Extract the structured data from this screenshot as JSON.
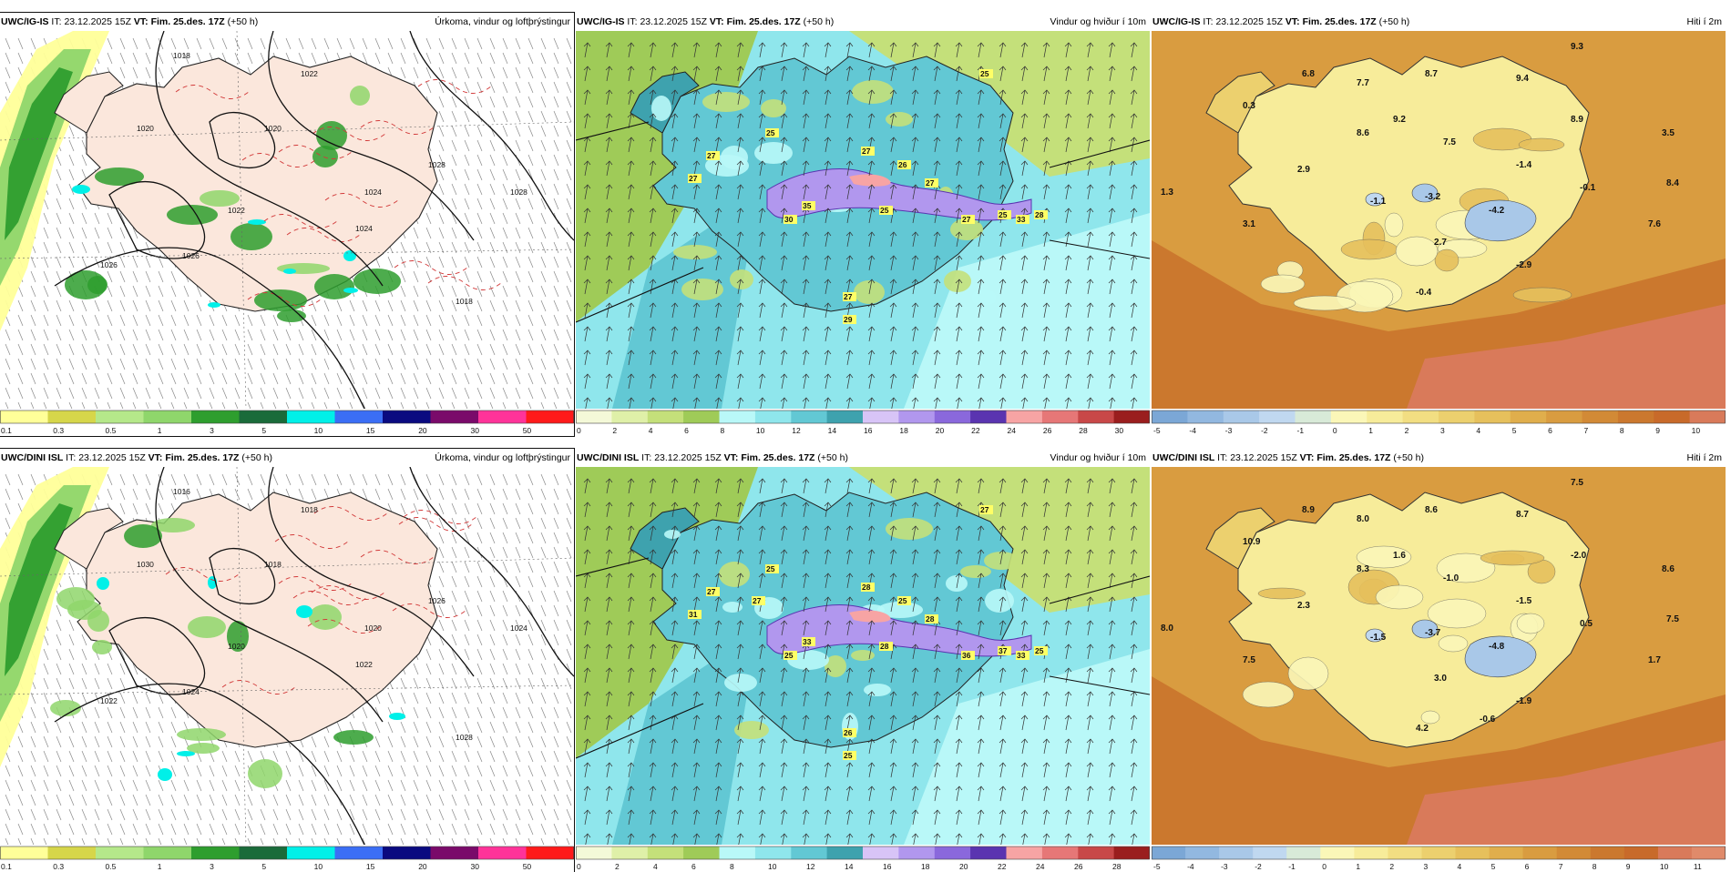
{
  "panels": [
    {
      "key": "ig_precip",
      "model": "UWC/IG-IS",
      "it_label": "IT:",
      "it_value": "23.12.2025 15Z",
      "vt_label": "VT: Fim. 25.des. 17Z",
      "lead": "(+50 h)",
      "title": "Úrkoma, vindur og loftþrýstingur",
      "legend": {
        "labels": [
          "0.1",
          "0.3",
          "0.5",
          "1",
          "3",
          "5",
          "10",
          "15",
          "20",
          "30",
          "50"
        ],
        "colors": [
          "#ffff99",
          "#d6d64a",
          "#b5e88a",
          "#8fd66b",
          "#2e9e2e",
          "#1a6b3a",
          "#00f0e8",
          "#3b6ef5",
          "#0a0a80",
          "#7a0a6a",
          "#ff3399",
          "#ff1a1a"
        ]
      },
      "isobars": [
        "1018",
        "1020",
        "1022",
        "1024",
        "1026",
        "1028",
        "1018",
        "1020",
        "1022",
        "1024",
        "1026",
        "1028"
      ],
      "values": []
    },
    {
      "key": "ig_wind",
      "model": "UWC/IG-IS",
      "it_label": "IT:",
      "it_value": "23.12.2025 15Z",
      "vt_label": "VT: Fim. 25.des. 17Z",
      "lead": "(+50 h)",
      "title": "Vindur og hviður í 10m",
      "legend": {
        "labels": [
          "0",
          "2",
          "4",
          "6",
          "8",
          "10",
          "12",
          "14",
          "16",
          "18",
          "20",
          "22",
          "24",
          "26",
          "28",
          "30"
        ],
        "colors": [
          "#f4f9d8",
          "#dff0a8",
          "#c4e07a",
          "#9fcb58",
          "#b9f8f8",
          "#8fe6ec",
          "#62c8d4",
          "#3ea2ae",
          "#d8c4f7",
          "#b197ee",
          "#8a68dc",
          "#5a34b0",
          "#f7a4a4",
          "#e67777",
          "#c84848",
          "#9a1e1e"
        ]
      },
      "values": [
        "25",
        "25",
        "27",
        "27",
        "26",
        "27",
        "27",
        "30",
        "35",
        "25",
        "27",
        "25",
        "33",
        "28",
        "27",
        "29"
      ]
    },
    {
      "key": "ig_temp",
      "model": "UWC/IG-IS",
      "it_label": "IT:",
      "it_value": "23.12.2025 15Z",
      "vt_label": "VT: Fim. 25.des. 17Z",
      "lead": "(+50 h)",
      "title": "Hiti í 2m",
      "legend": {
        "labels": [
          "-5",
          "-4",
          "-3",
          "-2",
          "-1",
          "0",
          "1",
          "2",
          "3",
          "4",
          "5",
          "6",
          "7",
          "8",
          "9",
          "10"
        ],
        "colors": [
          "#7ba7d6",
          "#92b8e0",
          "#a9c8e8",
          "#c0d8f0",
          "#d8ead8",
          "#fbf7b8",
          "#f7ec9a",
          "#f2de82",
          "#ecd06e",
          "#e6c05c",
          "#e0ae4c",
          "#d99c40",
          "#d28a36",
          "#cb782e",
          "#c86a2a",
          "#d97a5a"
        ]
      },
      "values": [
        "9.3",
        "6.8",
        "7.7",
        "8.7",
        "9.4",
        "0.3",
        "9.2",
        "8.6",
        "7.5",
        "8.9",
        "3.5",
        "2.9",
        "-1.4",
        "-0.1",
        "8.4",
        "1.3",
        "-1.1",
        "-3.2",
        "-4.2",
        "3.1",
        "2.7",
        "7.6",
        "-2.9",
        "-0.4"
      ]
    },
    {
      "key": "dini_precip",
      "model": "UWC/DINI ISL",
      "it_label": "IT:",
      "it_value": "23.12.2025 15Z",
      "vt_label": "VT: Fim. 25.des. 17Z",
      "lead": "(+50 h)",
      "title": "Úrkoma, vindur og loftþrýstingur",
      "legend": {
        "labels": [
          "0.1",
          "0.3",
          "0.5",
          "1",
          "3",
          "5",
          "10",
          "15",
          "20",
          "30",
          "50"
        ],
        "colors": [
          "#ffff99",
          "#d6d64a",
          "#b5e88a",
          "#8fd66b",
          "#2e9e2e",
          "#1a6b3a",
          "#00f0e8",
          "#3b6ef5",
          "#0a0a80",
          "#7a0a6a",
          "#ff3399",
          "#ff1a1a"
        ]
      },
      "isobars": [
        "1016",
        "1018",
        "1020",
        "1022",
        "1024",
        "1026",
        "1028",
        "1030",
        "1018",
        "1020",
        "1022",
        "1024"
      ],
      "values": []
    },
    {
      "key": "dini_wind",
      "model": "UWC/DINI ISL",
      "it_label": "IT:",
      "it_value": "23.12.2025 15Z",
      "vt_label": "VT: Fim. 25.des. 17Z",
      "lead": "(+50 h)",
      "title": "Vindur og hviður í 10m",
      "legend": {
        "labels": [
          "0",
          "2",
          "4",
          "6",
          "8",
          "10",
          "12",
          "14",
          "16",
          "18",
          "20",
          "22",
          "24",
          "26",
          "28"
        ],
        "colors": [
          "#f4f9d8",
          "#dff0a8",
          "#c4e07a",
          "#9fcb58",
          "#b9f8f8",
          "#8fe6ec",
          "#62c8d4",
          "#3ea2ae",
          "#d8c4f7",
          "#b197ee",
          "#8a68dc",
          "#5a34b0",
          "#f7a4a4",
          "#e67777",
          "#c84848",
          "#9a1e1e"
        ]
      },
      "values": [
        "27",
        "25",
        "27",
        "28",
        "25",
        "28",
        "31",
        "25",
        "33",
        "28",
        "36",
        "37",
        "33",
        "25",
        "26",
        "25",
        "27"
      ]
    },
    {
      "key": "dini_temp",
      "model": "UWC/DINI ISL",
      "it_label": "IT:",
      "it_value": "23.12.2025 15Z",
      "vt_label": "VT: Fim. 25.des. 17Z",
      "lead": "(+50 h)",
      "title": "Hiti í 2m",
      "legend": {
        "labels": [
          "-5",
          "-4",
          "-3",
          "-2",
          "-1",
          "0",
          "1",
          "2",
          "3",
          "4",
          "5",
          "6",
          "7",
          "8",
          "9",
          "10",
          "11"
        ],
        "colors": [
          "#7ba7d6",
          "#92b8e0",
          "#a9c8e8",
          "#c0d8f0",
          "#d8ead8",
          "#fbf7b8",
          "#f7ec9a",
          "#f2de82",
          "#ecd06e",
          "#e6c05c",
          "#e0ae4c",
          "#d99c40",
          "#d28a36",
          "#cb782e",
          "#c86a2a",
          "#d97a5a",
          "#e08a6a"
        ]
      },
      "values": [
        "7.5",
        "8.9",
        "8.0",
        "8.6",
        "8.7",
        "10.9",
        "1.6",
        "8.3",
        "-1.0",
        "-2.0",
        "8.6",
        "2.3",
        "-1.5",
        "0.5",
        "7.5",
        "8.0",
        "-1.5",
        "-3.7",
        "-4.8",
        "7.5",
        "3.0",
        "1.7",
        "-1.9",
        "4.2",
        "-0.6"
      ]
    }
  ]
}
